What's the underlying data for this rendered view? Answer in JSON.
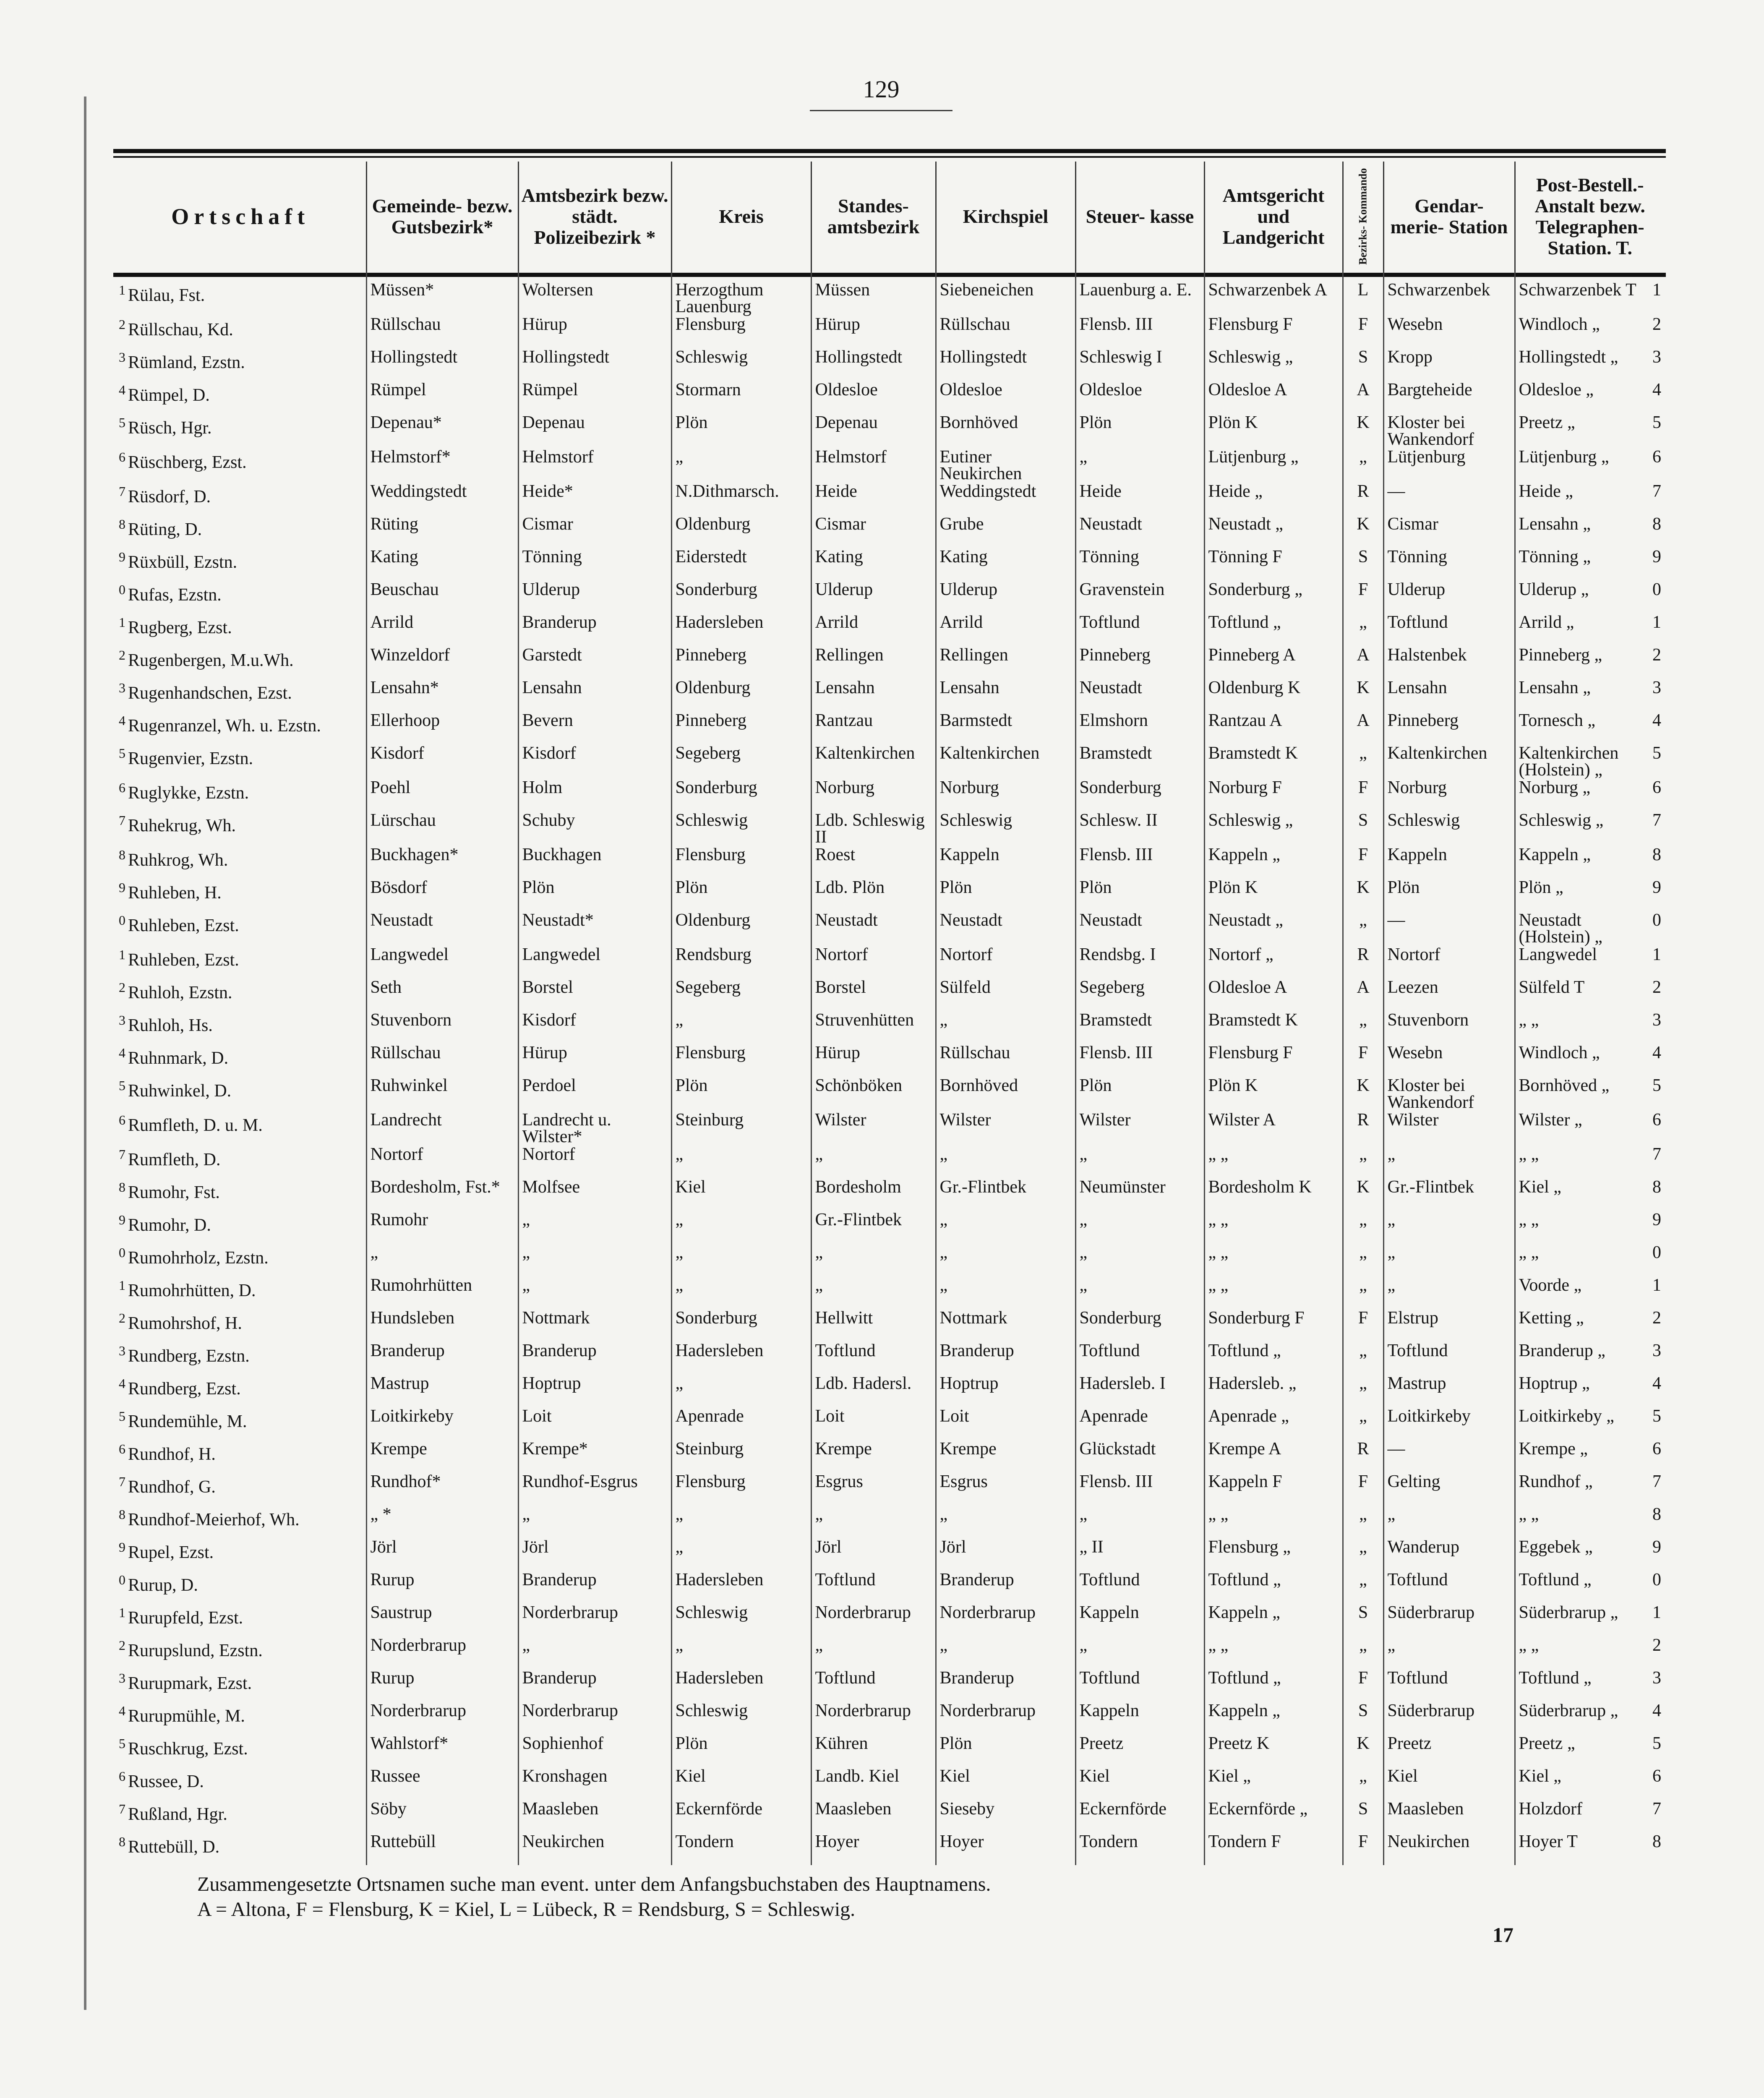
{
  "page_number": "129",
  "sheet_number": "17",
  "headers": [
    "Ortschaft",
    "Gemeinde- bezw. Gutsbezirk*",
    "Amtsbezirk bezw. städt. Polizeibezirk *",
    "Kreis",
    "Standes- amtsbezirk",
    "Kirchspiel",
    "Steuer- kasse",
    "Amtsgericht und Landgericht",
    "Bezirks- Kommando",
    "Gendar- merie- Station",
    "Post-Bestell.- Anstalt bezw. Telegraphen- Station. T."
  ],
  "rows": [
    [
      "1",
      "Rülau, Fst.",
      "Müssen*",
      "Woltersen",
      "Herzogthum Lauenburg",
      "Müssen",
      "Siebeneichen",
      "Lauenburg a. E.",
      "Schwarzenbek A",
      "L",
      "Schwarzenbek",
      "Schwarzenbek T",
      "1"
    ],
    [
      "2",
      "Rüllschau, Kd.",
      "Rüllschau",
      "Hürup",
      "Flensburg",
      "Hürup",
      "Rüllschau",
      "Flensb. III",
      "Flensburg F",
      "F",
      "Wesebn",
      "Windloch „",
      "2"
    ],
    [
      "3",
      "Rümland, Ezstn.",
      "Hollingstedt",
      "Hollingstedt",
      "Schleswig",
      "Hollingstedt",
      "Hollingstedt",
      "Schleswig I",
      "Schleswig „",
      "S",
      "Kropp",
      "Hollingstedt „",
      "3"
    ],
    [
      "4",
      "Rümpel, D.",
      "Rümpel",
      "Rümpel",
      "Stormarn",
      "Oldesloe",
      "Oldesloe",
      "Oldesloe",
      "Oldesloe A",
      "A",
      "Bargteheide",
      "Oldesloe „",
      "4"
    ],
    [
      "5",
      "Rüsch, Hgr.",
      "Depenau*",
      "Depenau",
      "Plön",
      "Depenau",
      "Bornhöved",
      "Plön",
      "Plön K",
      "K",
      "Kloster bei Wankendorf",
      "Preetz „",
      "5"
    ],
    [
      "6",
      "Rüschberg, Ezst.",
      "Helmstorf*",
      "Helmstorf",
      "„",
      "Helmstorf",
      "Eutiner Neukirchen",
      "„",
      "Lütjenburg „",
      "„",
      "Lütjenburg",
      "Lütjenburg „",
      "6"
    ],
    [
      "7",
      "Rüsdorf, D.",
      "Weddingstedt",
      "Heide*",
      "N.Dithmarsch.",
      "Heide",
      "Weddingstedt",
      "Heide",
      "Heide „",
      "R",
      "—",
      "Heide „",
      "7"
    ],
    [
      "8",
      "Rüting, D.",
      "Rüting",
      "Cismar",
      "Oldenburg",
      "Cismar",
      "Grube",
      "Neustadt",
      "Neustadt „",
      "K",
      "Cismar",
      "Lensahn „",
      "8"
    ],
    [
      "9",
      "Rüxbüll, Ezstn.",
      "Kating",
      "Tönning",
      "Eiderstedt",
      "Kating",
      "Kating",
      "Tönning",
      "Tönning F",
      "S",
      "Tönning",
      "Tönning „",
      "9"
    ],
    [
      "0",
      "Rufas, Ezstn.",
      "Beuschau",
      "Ulderup",
      "Sonderburg",
      "Ulderup",
      "Ulderup",
      "Gravenstein",
      "Sonderburg „",
      "F",
      "Ulderup",
      "Ulderup „",
      "0"
    ],
    [
      "1",
      "Rugberg, Ezst.",
      "Arrild",
      "Branderup",
      "Hadersleben",
      "Arrild",
      "Arrild",
      "Toftlund",
      "Toftlund „",
      "„",
      "Toftlund",
      "Arrild „",
      "1"
    ],
    [
      "2",
      "Rugenbergen, M.u.Wh.",
      "Winzeldorf",
      "Garstedt",
      "Pinneberg",
      "Rellingen",
      "Rellingen",
      "Pinneberg",
      "Pinneberg A",
      "A",
      "Halstenbek",
      "Pinneberg „",
      "2"
    ],
    [
      "3",
      "Rugenhandschen, Ezst.",
      "Lensahn*",
      "Lensahn",
      "Oldenburg",
      "Lensahn",
      "Lensahn",
      "Neustadt",
      "Oldenburg K",
      "K",
      "Lensahn",
      "Lensahn „",
      "3"
    ],
    [
      "4",
      "Rugenranzel, Wh. u. Ezstn.",
      "Ellerhoop",
      "Bevern",
      "Pinneberg",
      "Rantzau",
      "Barmstedt",
      "Elmshorn",
      "Rantzau A",
      "A",
      "Pinneberg",
      "Tornesch „",
      "4"
    ],
    [
      "5",
      "Rugenvier, Ezstn.",
      "Kisdorf",
      "Kisdorf",
      "Segeberg",
      "Kaltenkirchen",
      "Kaltenkirchen",
      "Bramstedt",
      "Bramstedt K",
      "„",
      "Kaltenkirchen",
      "Kaltenkirchen (Holstein) „",
      "5"
    ],
    [
      "6",
      "Ruglykke, Ezstn.",
      "Poehl",
      "Holm",
      "Sonderburg",
      "Norburg",
      "Norburg",
      "Sonderburg",
      "Norburg F",
      "F",
      "Norburg",
      "Norburg „",
      "6"
    ],
    [
      "7",
      "Ruhekrug, Wh.",
      "Lürschau",
      "Schuby",
      "Schleswig",
      "Ldb. Schleswig II",
      "Schleswig",
      "Schlesw. II",
      "Schleswig „",
      "S",
      "Schleswig",
      "Schleswig „",
      "7"
    ],
    [
      "8",
      "Ruhkrog, Wh.",
      "Buckhagen*",
      "Buckhagen",
      "Flensburg",
      "Roest",
      "Kappeln",
      "Flensb. III",
      "Kappeln „",
      "F",
      "Kappeln",
      "Kappeln „",
      "8"
    ],
    [
      "9",
      "Ruhleben, H.",
      "Bösdorf",
      "Plön",
      "Plön",
      "Ldb. Plön",
      "Plön",
      "Plön",
      "Plön K",
      "K",
      "Plön",
      "Plön „",
      "9"
    ],
    [
      "0",
      "Ruhleben, Ezst.",
      "Neustadt",
      "Neustadt*",
      "Oldenburg",
      "Neustadt",
      "Neustadt",
      "Neustadt",
      "Neustadt „",
      "„",
      "—",
      "Neustadt (Holstein) „",
      "0"
    ],
    [
      "1",
      "Ruhleben, Ezst.",
      "Langwedel",
      "Langwedel",
      "Rendsburg",
      "Nortorf",
      "Nortorf",
      "Rendsbg. I",
      "Nortorf „",
      "R",
      "Nortorf",
      "Langwedel",
      "1"
    ],
    [
      "2",
      "Ruhloh, Ezstn.",
      "Seth",
      "Borstel",
      "Segeberg",
      "Borstel",
      "Sülfeld",
      "Segeberg",
      "Oldesloe A",
      "A",
      "Leezen",
      "Sülfeld T",
      "2"
    ],
    [
      "3",
      "Ruhloh, Hs.",
      "Stuvenborn",
      "Kisdorf",
      "„",
      "Struvenhütten",
      "„",
      "Bramstedt",
      "Bramstedt K",
      "„",
      "Stuvenborn",
      "„ „",
      "3"
    ],
    [
      "4",
      "Ruhnmark, D.",
      "Rüllschau",
      "Hürup",
      "Flensburg",
      "Hürup",
      "Rüllschau",
      "Flensb. III",
      "Flensburg F",
      "F",
      "Wesebn",
      "Windloch „",
      "4"
    ],
    [
      "5",
      "Ruhwinkel, D.",
      "Ruhwinkel",
      "Perdoel",
      "Plön",
      "Schönböken",
      "Bornhöved",
      "Plön",
      "Plön K",
      "K",
      "Kloster bei Wankendorf",
      "Bornhöved „",
      "5"
    ],
    [
      "6",
      "Rumfleth, D. u. M.",
      "Landrecht",
      "Landrecht u. Wilster*",
      "Steinburg",
      "Wilster",
      "Wilster",
      "Wilster",
      "Wilster A",
      "R",
      "Wilster",
      "Wilster „",
      "6"
    ],
    [
      "7",
      "Rumfleth, D.",
      "Nortorf",
      "Nortorf",
      "„",
      "„",
      "„",
      "„",
      "„ „",
      "„",
      "„",
      "„ „",
      "7"
    ],
    [
      "8",
      "Rumohr, Fst.",
      "Bordesholm, Fst.*",
      "Molfsee",
      "Kiel",
      "Bordesholm",
      "Gr.-Flintbek",
      "Neumünster",
      "Bordesholm K",
      "K",
      "Gr.-Flintbek",
      "Kiel „",
      "8"
    ],
    [
      "9",
      "Rumohr, D.",
      "Rumohr",
      "„",
      "„",
      "Gr.-Flintbek",
      "„",
      "„",
      "„ „",
      "„",
      "„",
      "„ „",
      "9"
    ],
    [
      "0",
      "Rumohrholz, Ezstn.",
      "„",
      "„",
      "„",
      "„",
      "„",
      "„",
      "„ „",
      "„",
      "„",
      "„ „",
      "0"
    ],
    [
      "1",
      "Rumohrhütten, D.",
      "Rumohrhütten",
      "„",
      "„",
      "„",
      "„",
      "„",
      "„ „",
      "„",
      "„",
      "Voorde „",
      "1"
    ],
    [
      "2",
      "Rumohrshof, H.",
      "Hundsleben",
      "Nottmark",
      "Sonderburg",
      "Hellwitt",
      "Nottmark",
      "Sonderburg",
      "Sonderburg F",
      "F",
      "Elstrup",
      "Ketting „",
      "2"
    ],
    [
      "3",
      "Rundberg, Ezstn.",
      "Branderup",
      "Branderup",
      "Hadersleben",
      "Toftlund",
      "Branderup",
      "Toftlund",
      "Toftlund „",
      "„",
      "Toftlund",
      "Branderup „",
      "3"
    ],
    [
      "4",
      "Rundberg, Ezst.",
      "Mastrup",
      "Hoptrup",
      "„",
      "Ldb. Hadersl.",
      "Hoptrup",
      "Hadersleb. I",
      "Hadersleb. „",
      "„",
      "Mastrup",
      "Hoptrup „",
      "4"
    ],
    [
      "5",
      "Rundemühle, M.",
      "Loitkirkeby",
      "Loit",
      "Apenrade",
      "Loit",
      "Loit",
      "Apenrade",
      "Apenrade „",
      "„",
      "Loitkirkeby",
      "Loitkirkeby „",
      "5"
    ],
    [
      "6",
      "Rundhof, H.",
      "Krempe",
      "Krempe*",
      "Steinburg",
      "Krempe",
      "Krempe",
      "Glückstadt",
      "Krempe A",
      "R",
      "—",
      "Krempe „",
      "6"
    ],
    [
      "7",
      "Rundhof, G.",
      "Rundhof*",
      "Rundhof-Esgrus",
      "Flensburg",
      "Esgrus",
      "Esgrus",
      "Flensb. III",
      "Kappeln F",
      "F",
      "Gelting",
      "Rundhof „",
      "7"
    ],
    [
      "8",
      "Rundhof-Meierhof, Wh.",
      "„ *",
      "„",
      "„",
      "„",
      "„",
      "„",
      "„ „",
      "„",
      "„",
      "„ „",
      "8"
    ],
    [
      "9",
      "Rupel, Ezst.",
      "Jörl",
      "Jörl",
      "„",
      "Jörl",
      "Jörl",
      "„ II",
      "Flensburg „",
      "„",
      "Wanderup",
      "Eggebek „",
      "9"
    ],
    [
      "0",
      "Rurup, D.",
      "Rurup",
      "Branderup",
      "Hadersleben",
      "Toftlund",
      "Branderup",
      "Toftlund",
      "Toftlund „",
      "„",
      "Toftlund",
      "Toftlund „",
      "0"
    ],
    [
      "1",
      "Rurupfeld, Ezst.",
      "Saustrup",
      "Norderbrarup",
      "Schleswig",
      "Norderbrarup",
      "Norderbrarup",
      "Kappeln",
      "Kappeln „",
      "S",
      "Süderbrarup",
      "Süderbrarup „",
      "1"
    ],
    [
      "2",
      "Rurupslund, Ezstn.",
      "Norderbrarup",
      "„",
      "„",
      "„",
      "„",
      "„",
      "„ „",
      "„",
      "„",
      "„ „",
      "2"
    ],
    [
      "3",
      "Rurupmark, Ezst.",
      "Rurup",
      "Branderup",
      "Hadersleben",
      "Toftlund",
      "Branderup",
      "Toftlund",
      "Toftlund „",
      "F",
      "Toftlund",
      "Toftlund „",
      "3"
    ],
    [
      "4",
      "Rurupmühle, M.",
      "Norderbrarup",
      "Norderbrarup",
      "Schleswig",
      "Norderbrarup",
      "Norderbrarup",
      "Kappeln",
      "Kappeln „",
      "S",
      "Süderbrarup",
      "Süderbrarup „",
      "4"
    ],
    [
      "5",
      "Ruschkrug, Ezst.",
      "Wahlstorf*",
      "Sophienhof",
      "Plön",
      "Kühren",
      "Plön",
      "Preetz",
      "Preetz K",
      "K",
      "Preetz",
      "Preetz „",
      "5"
    ],
    [
      "6",
      "Russee, D.",
      "Russee",
      "Kronshagen",
      "Kiel",
      "Landb. Kiel",
      "Kiel",
      "Kiel",
      "Kiel „",
      "„",
      "Kiel",
      "Kiel „",
      "6"
    ],
    [
      "7",
      "Rußland, Hgr.",
      "Söby",
      "Maasleben",
      "Eckernförde",
      "Maasleben",
      "Sieseby",
      "Eckernförde",
      "Eckernförde „",
      "S",
      "Maasleben",
      "Holzdorf",
      "7"
    ],
    [
      "8",
      "Ruttebüll, D.",
      "Ruttebüll",
      "Neukirchen",
      "Tondern",
      "Hoyer",
      "Hoyer",
      "Tondern",
      "Tondern F",
      "F",
      "Neukirchen",
      "Hoyer T",
      "8"
    ]
  ],
  "footer": {
    "note": "Zusammengesetzte Ortsnamen suche man event. unter dem Anfangsbuchstaben des Hauptnamens.",
    "legend": "A = Altona, F = Flensburg, K = Kiel, L = Lübeck, R = Rendsburg, S = Schleswig."
  }
}
